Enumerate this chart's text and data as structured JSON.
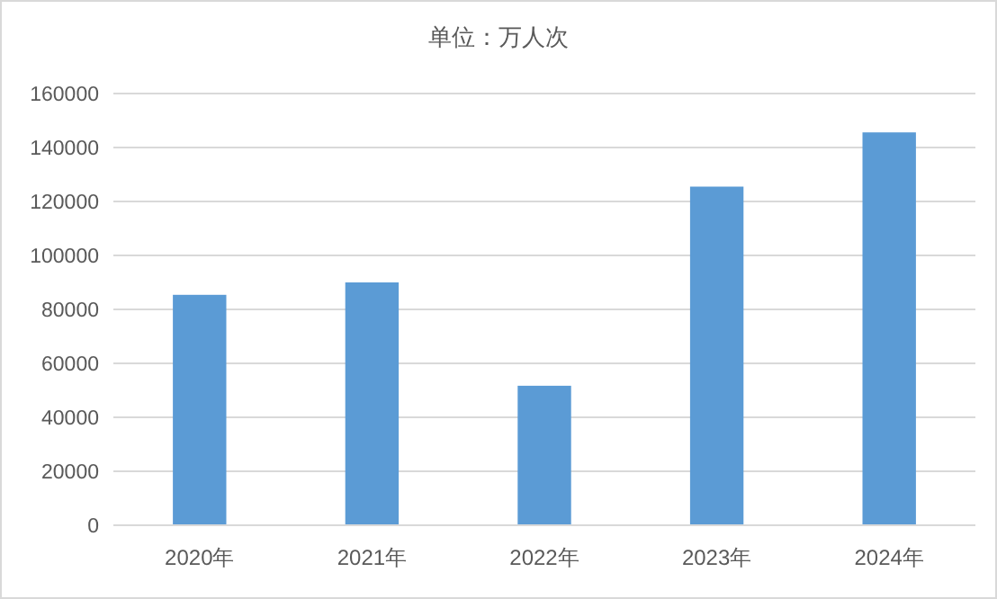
{
  "chart_data": {
    "type": "bar",
    "title": "单位：万人次",
    "categories": [
      "2020年",
      "2021年",
      "2022年",
      "2023年",
      "2024年"
    ],
    "values": [
      85400,
      90000,
      51700,
      125500,
      145600
    ],
    "color": "#5b9bd5",
    "ylim": [
      0,
      160000
    ],
    "yticks": [
      0,
      20000,
      40000,
      60000,
      80000,
      100000,
      120000,
      140000,
      160000
    ],
    "grid": "y"
  }
}
